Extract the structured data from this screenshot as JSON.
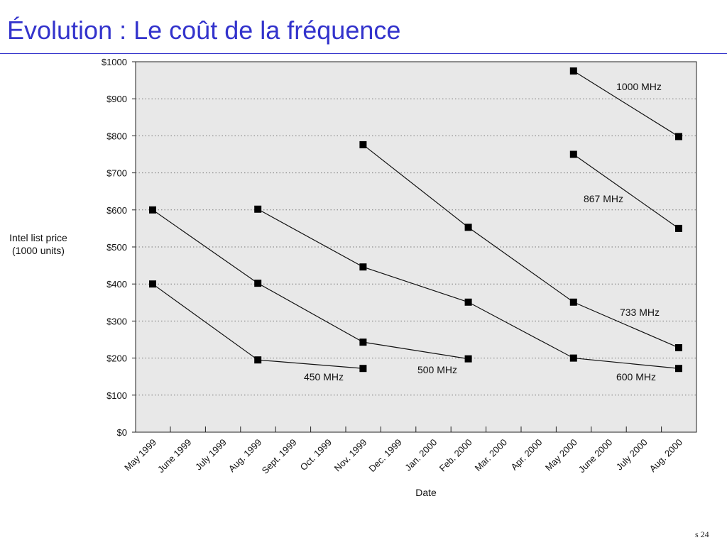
{
  "slide": {
    "title": "Évolution : Le coût de la fréquence",
    "page_number": "s 24"
  },
  "chart_data": {
    "type": "line",
    "xlabel": "Date",
    "ylabel_lines": [
      "Intel list price",
      "(1000 units)"
    ],
    "categories": [
      "May 1999",
      "June 1999",
      "July 1999",
      "Aug. 1999",
      "Sept. 1999",
      "Oct. 1999",
      "Nov. 1999",
      "Dec. 1999",
      "Jan. 2000",
      "Feb. 2000",
      "Mar. 2000",
      "Apr. 2000",
      "May 2000",
      "June 2000",
      "July 2000",
      "Aug. 2000"
    ],
    "yticks": [
      "$0",
      "$100",
      "$200",
      "$300",
      "$400",
      "$500",
      "$600",
      "$700",
      "$800",
      "$900",
      "$1000"
    ],
    "ylim": [
      0,
      1000
    ],
    "grid": "horizontal dotted",
    "background": "#e8e8e8",
    "series": [
      {
        "name": "450 MHz",
        "points": [
          [
            "May 1999",
            400
          ],
          [
            "Aug. 1999",
            195
          ],
          [
            "Nov. 1999",
            172
          ]
        ]
      },
      {
        "name": "500 MHz",
        "points": [
          [
            "May 1999",
            600
          ],
          [
            "Aug. 1999",
            402
          ],
          [
            "Nov. 1999",
            243
          ],
          [
            "Feb. 2000",
            198
          ]
        ]
      },
      {
        "name": "600 MHz",
        "points": [
          [
            "Aug. 1999",
            602
          ],
          [
            "Nov. 1999",
            446
          ],
          [
            "Feb. 2000",
            351
          ],
          [
            "May 2000",
            200
          ],
          [
            "Aug. 2000",
            172
          ]
        ]
      },
      {
        "name": "733 MHz",
        "points": [
          [
            "Nov. 1999",
            776
          ],
          [
            "Feb. 2000",
            553
          ],
          [
            "May 2000",
            351
          ],
          [
            "Aug. 2000",
            228
          ]
        ]
      },
      {
        "name": "867 MHz",
        "points": [
          [
            "May 2000",
            750
          ],
          [
            "Aug. 2000",
            550
          ]
        ]
      },
      {
        "name": "1000 MHz",
        "points": [
          [
            "May 2000",
            975
          ],
          [
            "Aug. 2000",
            798
          ]
        ]
      }
    ]
  }
}
